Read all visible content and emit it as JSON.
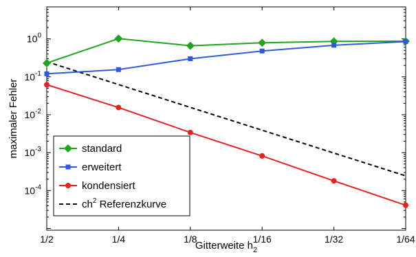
{
  "chart_data": {
    "type": "line",
    "title": "",
    "xlabel": "Gitterweite",
    "xlabel_sub": "2",
    "xlabel_letter": "h",
    "ylabel": "maximaler Fehler",
    "x": [
      2,
      4,
      8,
      16,
      32,
      64
    ],
    "x_tick_labels": [
      "1/2",
      "1/4",
      "1/8",
      "1/16",
      "1/32",
      "1/64"
    ],
    "x_scale": "log",
    "y_scale": "log",
    "ylim": [
      9e-06,
      7
    ],
    "y_ticks": [
      {
        "base": "10",
        "exp": "0",
        "value": 1
      },
      {
        "base": "10",
        "exp": "-1",
        "value": 0.1
      },
      {
        "base": "10",
        "exp": "-2",
        "value": 0.01
      },
      {
        "base": "10",
        "exp": "-3",
        "value": 0.001
      },
      {
        "base": "10",
        "exp": "-4",
        "value": 0.0001
      }
    ],
    "grid": false,
    "legend_placement": "bottom-left",
    "series": [
      {
        "name": "standard",
        "values": [
          0.23,
          1.02,
          0.66,
          0.79,
          0.86,
          0.87
        ],
        "color": "#1fa51f",
        "marker": "diamond",
        "line_style": "solid"
      },
      {
        "name": "erweitert",
        "values": [
          0.12,
          0.155,
          0.3,
          0.48,
          0.68,
          0.85
        ],
        "color": "#2f5bd9",
        "marker": "square",
        "line_style": "solid"
      },
      {
        "name": "kondensiert",
        "values": [
          0.062,
          0.0155,
          0.0034,
          0.00082,
          0.00018,
          4.1e-05
        ],
        "color": "#e32222",
        "marker": "circle",
        "line_style": "solid"
      },
      {
        "name": "Referenzkurve",
        "legend_prefix": "ch",
        "legend_sup": "2",
        "values": [
          0.25,
          0.0625,
          0.015625,
          0.00390625,
          0.0009765625,
          0.000244140625
        ],
        "color": "#000000",
        "marker": "none",
        "line_style": "dashed"
      }
    ]
  }
}
